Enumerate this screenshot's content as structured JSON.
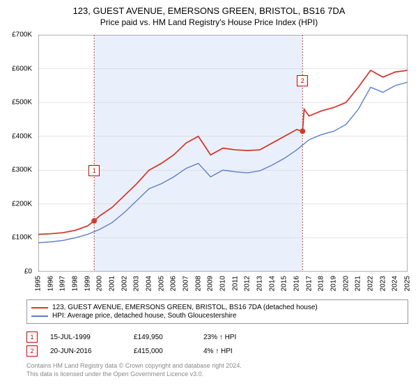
{
  "title": {
    "line1": "123, GUEST AVENUE, EMERSONS GREEN, BRISTOL, BS16 7DA",
    "line2": "Price paid vs. HM Land Registry's House Price Index (HPI)"
  },
  "chart": {
    "type": "line",
    "background_color": "#ffffff",
    "plot_background": "#ffffff",
    "grid_color": "#cccccc",
    "ylim": [
      0,
      700000
    ],
    "ytick_step": 100000,
    "y_tick_labels": [
      "£0",
      "£100K",
      "£200K",
      "£300K",
      "£400K",
      "£500K",
      "£600K",
      "£700K"
    ],
    "x_years": [
      1995,
      1996,
      1997,
      1998,
      1999,
      2000,
      2001,
      2002,
      2003,
      2004,
      2005,
      2006,
      2007,
      2008,
      2009,
      2010,
      2011,
      2012,
      2013,
      2014,
      2015,
      2016,
      2017,
      2018,
      2019,
      2020,
      2021,
      2022,
      2023,
      2024,
      2025
    ],
    "shaded_region": {
      "x_start": 1999.54,
      "x_end": 2016.47,
      "fill": "#eaf0fb"
    },
    "vlines": [
      {
        "x": 1999.54,
        "color": "#d43a2f",
        "dash": "2,2"
      },
      {
        "x": 2016.47,
        "color": "#d43a2f",
        "dash": "2,2"
      }
    ],
    "series": [
      {
        "name": "price_paid",
        "label": "123, GUEST AVENUE, EMERSONS GREEN, BRISTOL, BS16 7DA (detached house)",
        "color": "#d43a2f",
        "line_width": 1.8,
        "points": [
          [
            1995,
            110000
          ],
          [
            1996,
            112000
          ],
          [
            1997,
            115000
          ],
          [
            1998,
            122000
          ],
          [
            1999,
            135000
          ],
          [
            1999.54,
            149950
          ],
          [
            2000,
            165000
          ],
          [
            2001,
            190000
          ],
          [
            2002,
            225000
          ],
          [
            2003,
            260000
          ],
          [
            2004,
            300000
          ],
          [
            2005,
            320000
          ],
          [
            2006,
            345000
          ],
          [
            2007,
            380000
          ],
          [
            2008,
            400000
          ],
          [
            2009,
            345000
          ],
          [
            2010,
            365000
          ],
          [
            2011,
            360000
          ],
          [
            2012,
            358000
          ],
          [
            2013,
            360000
          ],
          [
            2014,
            380000
          ],
          [
            2015,
            400000
          ],
          [
            2016,
            420000
          ],
          [
            2016.47,
            415000
          ],
          [
            2016.6,
            480000
          ],
          [
            2017,
            460000
          ],
          [
            2018,
            475000
          ],
          [
            2019,
            485000
          ],
          [
            2020,
            500000
          ],
          [
            2021,
            545000
          ],
          [
            2022,
            595000
          ],
          [
            2023,
            575000
          ],
          [
            2024,
            590000
          ],
          [
            2025,
            595000
          ]
        ]
      },
      {
        "name": "hpi",
        "label": "HPI: Average price, detached house, South Gloucestershire",
        "color": "#5b7fc7",
        "line_width": 1.4,
        "points": [
          [
            1995,
            85000
          ],
          [
            1996,
            88000
          ],
          [
            1997,
            92000
          ],
          [
            1998,
            100000
          ],
          [
            1999,
            110000
          ],
          [
            2000,
            125000
          ],
          [
            2001,
            145000
          ],
          [
            2002,
            175000
          ],
          [
            2003,
            210000
          ],
          [
            2004,
            245000
          ],
          [
            2005,
            260000
          ],
          [
            2006,
            280000
          ],
          [
            2007,
            305000
          ],
          [
            2008,
            320000
          ],
          [
            2009,
            280000
          ],
          [
            2010,
            300000
          ],
          [
            2011,
            295000
          ],
          [
            2012,
            292000
          ],
          [
            2013,
            298000
          ],
          [
            2014,
            315000
          ],
          [
            2015,
            335000
          ],
          [
            2016,
            360000
          ],
          [
            2017,
            390000
          ],
          [
            2018,
            405000
          ],
          [
            2019,
            415000
          ],
          [
            2020,
            435000
          ],
          [
            2021,
            480000
          ],
          [
            2022,
            545000
          ],
          [
            2023,
            530000
          ],
          [
            2024,
            550000
          ],
          [
            2025,
            560000
          ]
        ]
      }
    ],
    "sale_markers": [
      {
        "idx": "1",
        "x": 1999.54,
        "y": 149950,
        "dot_color": "#d43a2f",
        "box_y_offset": -80
      },
      {
        "idx": "2",
        "x": 2016.47,
        "y": 415000,
        "dot_color": "#d43a2f",
        "box_y_offset": -80
      }
    ]
  },
  "legend": {
    "items": [
      {
        "color": "#d43a2f",
        "label": "123, GUEST AVENUE, EMERSONS GREEN, BRISTOL, BS16 7DA (detached house)"
      },
      {
        "color": "#5b7fc7",
        "label": "HPI: Average price, detached house, South Gloucestershire"
      }
    ]
  },
  "sales": [
    {
      "marker": "1",
      "date": "15-JUL-1999",
      "price": "£149,950",
      "hpi": "23% ↑ HPI"
    },
    {
      "marker": "2",
      "date": "20-JUN-2016",
      "price": "£415,000",
      "hpi": "4% ↑ HPI"
    }
  ],
  "footer": {
    "line1": "Contains HM Land Registry data © Crown copyright and database right 2024.",
    "line2": "This data is licensed under the Open Government Licence v3.0."
  }
}
